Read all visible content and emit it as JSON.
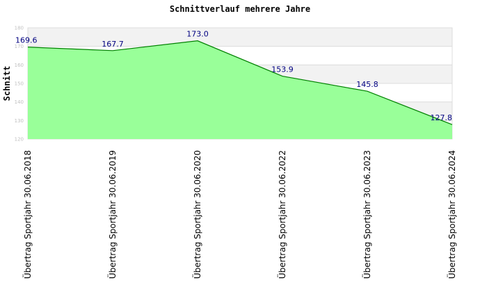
{
  "chart_data": {
    "type": "area",
    "title": "Schnittverlauf mehrere Jahre",
    "ylabel": "Schnitt",
    "xlabel": "",
    "categories": [
      "Übertrag Sportjahr 30.06.2018",
      "Übertrag Sportjahr 30.06.2019",
      "Übertrag Sportjahr 30.06.2020",
      "Übertrag Sportjahr 30.06.2022",
      "Übertrag Sportjahr 30.06.2023",
      "Übertrag Sportjahr 30.06.2024"
    ],
    "values": [
      169.6,
      167.7,
      173.0,
      153.9,
      145.8,
      127.8
    ],
    "data_labels": [
      "169.6",
      "167.7",
      "173.0",
      "153.9",
      "145.8",
      "127.8"
    ],
    "ylim": [
      120,
      180
    ],
    "yticks": [
      "120",
      "130",
      "140",
      "150",
      "160",
      "170",
      "180"
    ],
    "grid": true,
    "colors": {
      "fill": "#99ff99",
      "line": "#008000",
      "band": "#f2f2f2",
      "grid": "#dcdcdc",
      "label": "#000080"
    }
  }
}
